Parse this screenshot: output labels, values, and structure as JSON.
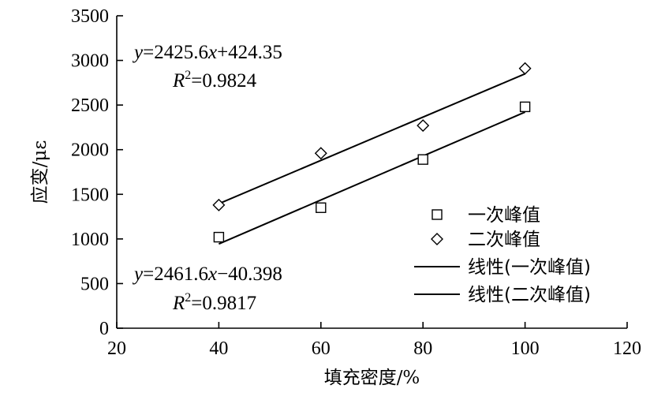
{
  "chart_data": {
    "type": "scatter",
    "title": "",
    "xlabel": "填充密度/%",
    "ylabel": "应变/με",
    "xlim": [
      20,
      120
    ],
    "ylim": [
      0,
      3500
    ],
    "xticks": [
      20,
      40,
      60,
      80,
      100,
      120
    ],
    "yticks": [
      0,
      500,
      1000,
      1500,
      2000,
      2500,
      3000,
      3500
    ],
    "x_tick_labels": [
      "20",
      "40",
      "60",
      "80",
      "100",
      "120"
    ],
    "y_tick_labels": [
      "0",
      "500",
      "1000",
      "1500",
      "2000",
      "2500",
      "3000",
      "3500"
    ],
    "grid": false,
    "legend_position": "right",
    "series": [
      {
        "name": "一次峰值",
        "marker": "square",
        "x": [
          40,
          60,
          80,
          100
        ],
        "y": [
          1020,
          1350,
          1890,
          2480
        ]
      },
      {
        "name": "二次峰值",
        "marker": "diamond",
        "x": [
          40,
          60,
          80,
          100
        ],
        "y": [
          1380,
          1960,
          2270,
          2910
        ]
      }
    ],
    "fits": [
      {
        "name": "线性(一次峰值)",
        "slope": 2461.6,
        "intercept": -40.398,
        "x_range": [
          40,
          100
        ],
        "equation": {
          "prefix": "y",
          "middle": "=2461.6",
          "var": "x",
          "suffix": "−40.398"
        },
        "r2": {
          "label": "R",
          "sup": "2",
          "value": "=0.9817"
        }
      },
      {
        "name": "线性(二次峰值)",
        "slope": 2425.6,
        "intercept": 424.35,
        "x_range": [
          40,
          100
        ],
        "equation": {
          "prefix": "y",
          "middle": "=2425.6",
          "var": "x",
          "suffix": "+424.35"
        },
        "r2": {
          "label": "R",
          "sup": "2",
          "value": "=0.9824"
        }
      }
    ]
  }
}
